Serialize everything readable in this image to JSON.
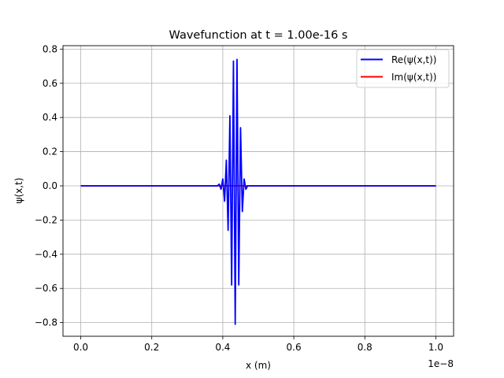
{
  "chart_data": {
    "type": "line",
    "title": "Wavefunction at t = 1.00e-16 s",
    "xlabel": "x (m)",
    "ylabel": "ψ(x,t)",
    "x_offset_label": "1e−8",
    "xlim": [
      -0.05,
      1.05
    ],
    "ylim": [
      -0.88,
      0.82
    ],
    "xticks": [
      0.0,
      0.2,
      0.4,
      0.6,
      0.8,
      1.0
    ],
    "xtick_labels": [
      "0.0",
      "0.2",
      "0.4",
      "0.6",
      "0.8",
      "1.0"
    ],
    "yticks": [
      -0.8,
      -0.6,
      -0.4,
      -0.2,
      0.0,
      0.2,
      0.4,
      0.6,
      0.8
    ],
    "ytick_labels": [
      "−0.8",
      "−0.6",
      "−0.4",
      "−0.2",
      "0.0",
      "0.2",
      "0.4",
      "0.6",
      "0.8"
    ],
    "grid": true,
    "legend_position": "upper right",
    "series": [
      {
        "name": "Re(ψ(x,t))",
        "color": "#0000ff",
        "x": [
          0.0,
          0.385,
          0.39,
          0.395,
          0.4,
          0.405,
          0.41,
          0.415,
          0.42,
          0.425,
          0.43,
          0.435,
          0.44,
          0.445,
          0.45,
          0.455,
          0.46,
          0.465,
          0.47,
          0.475,
          0.48,
          0.485,
          0.49,
          0.5,
          1.0
        ],
        "y": [
          0.0,
          0.0,
          0.01,
          -0.02,
          0.04,
          -0.09,
          0.15,
          -0.26,
          0.41,
          -0.58,
          0.73,
          -0.81,
          0.74,
          -0.58,
          0.34,
          -0.15,
          0.04,
          -0.02,
          0.0,
          0.0,
          0.0,
          0.0,
          0.0,
          0.0,
          0.0
        ]
      },
      {
        "name": "Im(ψ(x,t))",
        "color": "#ff0000",
        "x": [
          0.0,
          1.0
        ],
        "y": [
          0.0,
          0.0
        ]
      }
    ]
  }
}
